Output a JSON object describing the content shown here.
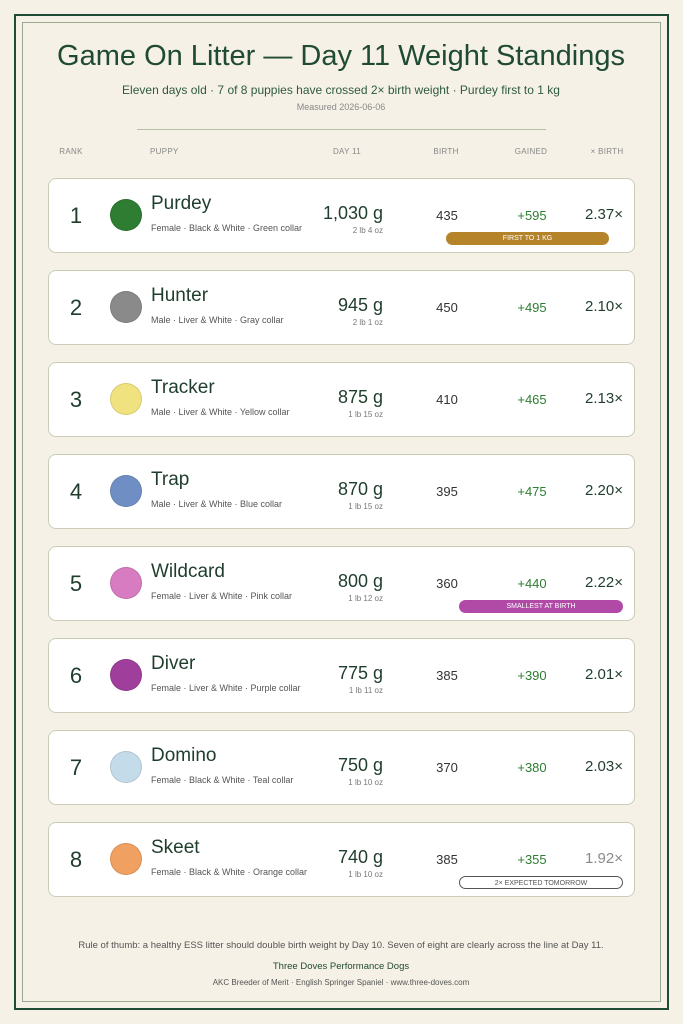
{
  "header": {
    "title": "Game On Litter — Day 11 Weight Standings",
    "subtitle": "Eleven days old · 7 of 8 puppies have crossed 2× birth weight · Purdey first to 1 kg",
    "date": "Measured 2026-06-06"
  },
  "table": {
    "columns": [
      "RANK",
      "PUPPY",
      "DAY 11",
      "BIRTH",
      "GAINED",
      "× BIRTH"
    ],
    "rows": [
      {
        "rank": "1",
        "name": "Purdey",
        "details": "Female · Black & White · Green collar",
        "weight": "1,030 g",
        "imperial": "2 lb 4 oz",
        "birth": "435",
        "gained": "+595",
        "multiple": "2.37×",
        "color": "#2e7d32",
        "badge": {
          "text": "FIRST TO 1 KG",
          "color": "#b5832a"
        }
      },
      {
        "rank": "2",
        "name": "Hunter",
        "details": "Male · Liver & White · Gray collar",
        "weight": "945 g",
        "imperial": "2 lb 1 oz",
        "birth": "450",
        "gained": "+495",
        "multiple": "2.10×",
        "color": "#8a8a8a"
      },
      {
        "rank": "3",
        "name": "Tracker",
        "details": "Male · Liver & White · Yellow collar",
        "weight": "875 g",
        "imperial": "1 lb 15 oz",
        "birth": "410",
        "gained": "+465",
        "multiple": "2.13×",
        "color": "#f0e27e"
      },
      {
        "rank": "4",
        "name": "Trap",
        "details": "Male · Liver & White · Blue collar",
        "weight": "870 g",
        "imperial": "1 lb 15 oz",
        "birth": "395",
        "gained": "+475",
        "multiple": "2.20×",
        "color": "#6f8fc4"
      },
      {
        "rank": "5",
        "name": "Wildcard",
        "details": "Female · Liver & White · Pink collar",
        "weight": "800 g",
        "imperial": "1 lb 12 oz",
        "birth": "360",
        "gained": "+440",
        "multiple": "2.22×",
        "color": "#d77cc0",
        "badge": {
          "text": "SMALLEST AT BIRTH",
          "color": "#b04aa6"
        }
      },
      {
        "rank": "6",
        "name": "Diver",
        "details": "Female · Liver & White · Purple collar",
        "weight": "775 g",
        "imperial": "1 lb 11 oz",
        "birth": "385",
        "gained": "+390",
        "multiple": "2.01×",
        "color": "#a03e9c"
      },
      {
        "rank": "7",
        "name": "Domino",
        "details": "Female · Black & White · Teal collar",
        "weight": "750 g",
        "imperial": "1 lb 10 oz",
        "birth": "370",
        "gained": "+380",
        "multiple": "2.03×",
        "color": "#c4dbe9"
      },
      {
        "rank": "8",
        "name": "Skeet",
        "details": "Female · Black & White · Orange collar",
        "weight": "740 g",
        "imperial": "1 lb 10 oz",
        "birth": "385",
        "gained": "+355",
        "multiple": "1.92×",
        "multiple_color": "#8a8a8a",
        "color": "#f0a060",
        "badge": {
          "text": "2× EXPECTED TOMORROW",
          "outline": true
        }
      }
    ]
  },
  "footer": {
    "note": "Rule of thumb: a healthy ESS litter should double birth weight by Day 10. Seven of eight are clearly across the line at Day 11.",
    "kennel": "Three Doves Performance Dogs",
    "info": "AKC Breeder of Merit · English Springer Spaniel · www.three-doves.com"
  }
}
